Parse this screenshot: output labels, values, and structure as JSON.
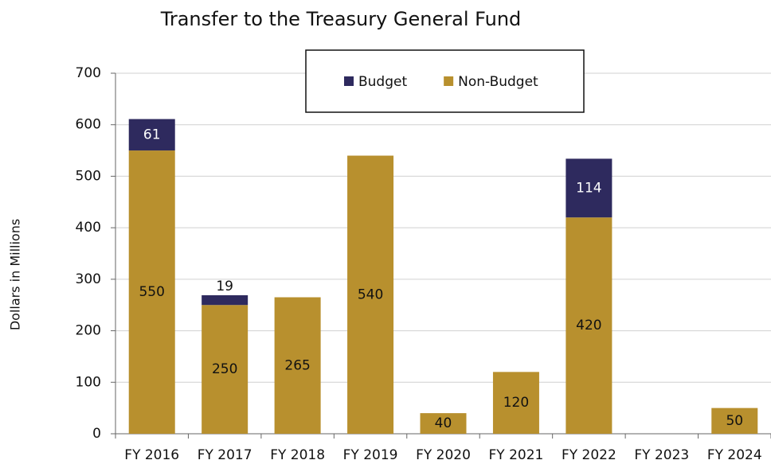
{
  "chart_data": {
    "type": "stacked_bar",
    "title": "Transfer to the Treasury General Fund",
    "y_label": "Dollars in Millions",
    "categories": [
      "FY 2016",
      "FY 2017",
      "FY 2018",
      "FY 2019",
      "FY 2020",
      "FY 2021",
      "FY 2022",
      "FY 2023",
      "FY 2024"
    ],
    "series": [
      {
        "name": "Non-Budget",
        "color": "#b8902e",
        "values": [
          550,
          250,
          265,
          540,
          40,
          120,
          420,
          null,
          50
        ]
      },
      {
        "name": "Budget",
        "color": "#2e2a5e",
        "values": [
          61,
          19,
          null,
          null,
          null,
          null,
          114,
          null,
          null
        ]
      }
    ],
    "legend_order": [
      1,
      0
    ],
    "ylim": [
      0,
      700
    ],
    "yticks": [
      0,
      100,
      200,
      300,
      400,
      500,
      600,
      700
    ],
    "grid": true
  }
}
